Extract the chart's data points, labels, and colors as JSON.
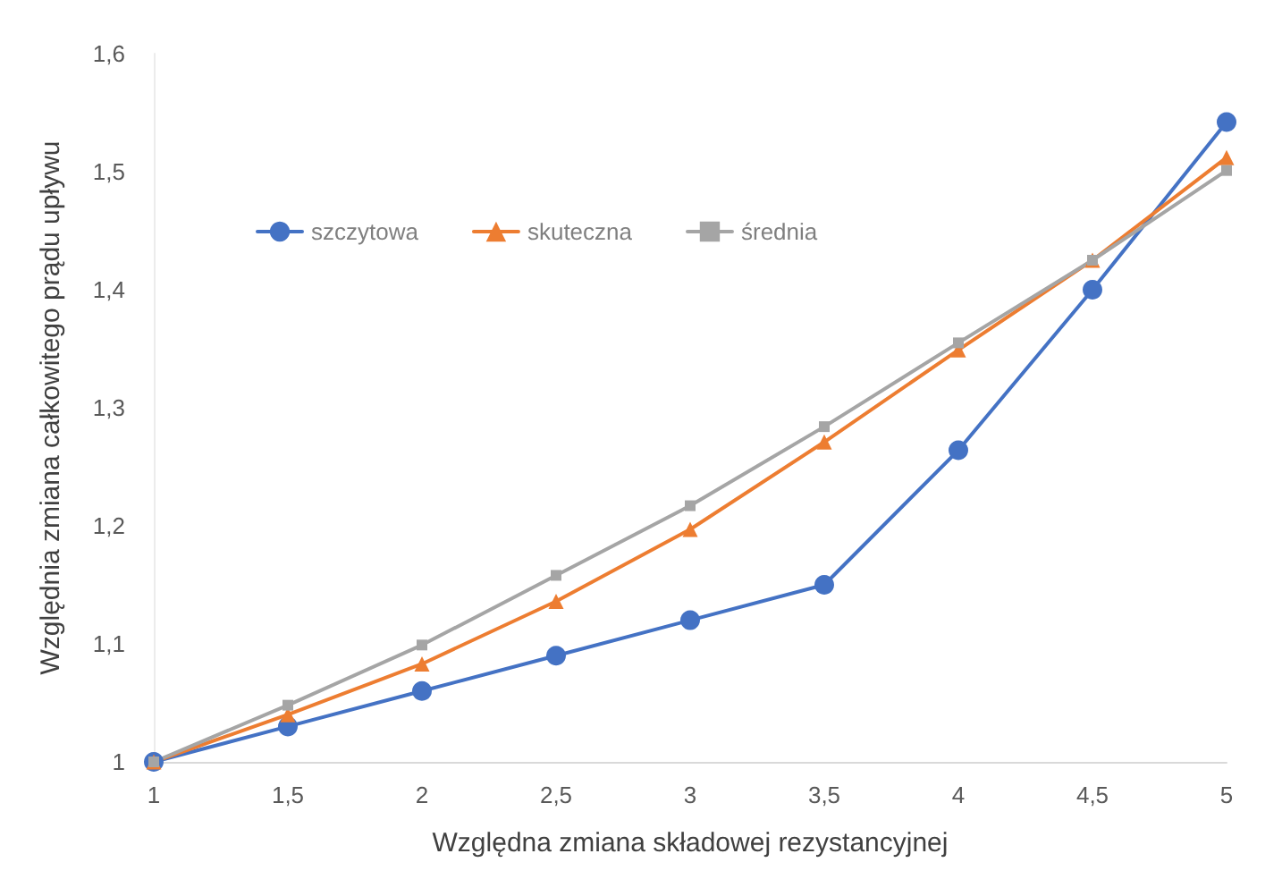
{
  "chart_data": {
    "type": "line",
    "xlabel": "Względna zmiana składowej rezystancyjnej",
    "ylabel": "Względnia zmiana całkowitego prądu upływu",
    "x": [
      1,
      1.5,
      2,
      2.5,
      3,
      3.5,
      4,
      4.5,
      5
    ],
    "series": [
      {
        "name": "szczytowa",
        "color": "#4472c4",
        "marker": "circle",
        "values": [
          1,
          1.03,
          1.06,
          1.09,
          1.12,
          1.15,
          1.264,
          1.4,
          1.542
        ]
      },
      {
        "name": "skuteczna",
        "color": "#ed7d31",
        "marker": "triangle",
        "values": [
          1,
          1.04,
          1.083,
          1.136,
          1.197,
          1.271,
          1.349,
          1.425,
          1.512
        ]
      },
      {
        "name": "średnia",
        "color": "#a5a5a5",
        "marker": "square",
        "values": [
          1,
          1.048,
          1.099,
          1.158,
          1.217,
          1.284,
          1.355,
          1.425,
          1.501
        ]
      }
    ],
    "xlim": [
      1,
      5
    ],
    "xticks": [
      {
        "value": 1,
        "label": "1"
      },
      {
        "value": 1.5,
        "label": "1,5"
      },
      {
        "value": 2,
        "label": "2"
      },
      {
        "value": 2.5,
        "label": "2,5"
      },
      {
        "value": 3,
        "label": "3"
      },
      {
        "value": 3.5,
        "label": "3,5"
      },
      {
        "value": 4,
        "label": "4"
      },
      {
        "value": 4.5,
        "label": "4,5"
      },
      {
        "value": 5,
        "label": "5"
      }
    ],
    "ylim": [
      1,
      1.6
    ],
    "yticks": [
      {
        "value": 1,
        "label": "1"
      },
      {
        "value": 1.1,
        "label": "1,1"
      },
      {
        "value": 1.2,
        "label": "1,2"
      },
      {
        "value": 1.3,
        "label": "1,3"
      },
      {
        "value": 1.4,
        "label": "1,4"
      },
      {
        "value": 1.5,
        "label": "1,5"
      },
      {
        "value": 1.6,
        "label": "1,6"
      }
    ],
    "grid": false,
    "legend": "top left",
    "line_style": "solid"
  }
}
